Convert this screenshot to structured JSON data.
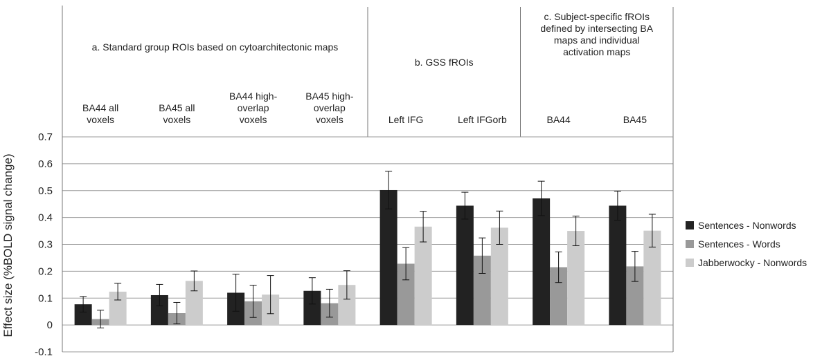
{
  "chart_data": {
    "type": "bar",
    "ylabel": "Effect size (%BOLD signal change)",
    "ylim": [
      -0.1,
      0.7
    ],
    "yticks": [
      "0.7",
      "0.6",
      "0.5",
      "0.4",
      "0.3",
      "0.2",
      "0.1",
      "0",
      "-0.1"
    ],
    "grid": true,
    "legend_position": "right",
    "groups": [
      {
        "label": "a. Standard group ROIs based on cytoarchitectonic maps",
        "first": 0,
        "count": 4
      },
      {
        "label": "b.  GSS fROIs",
        "first": 4,
        "count": 2
      },
      {
        "label": "c. Subject-specific fROIs defined by intersecting BA maps and individual activation maps",
        "first": 6,
        "count": 2
      }
    ],
    "categories": [
      "BA44 all voxels",
      "BA45 all voxels",
      "BA44 high-overlap voxels",
      "BA45 high-overlap voxels",
      "Left IFG",
      "Left IFGorb",
      "BA44",
      "BA45"
    ],
    "series": [
      {
        "name": "Sentences - Nonwords",
        "color": "#222222",
        "values": [
          0.077,
          0.111,
          0.12,
          0.127,
          0.502,
          0.444,
          0.471,
          0.444
        ],
        "errors": [
          0.029,
          0.04,
          0.069,
          0.049,
          0.07,
          0.05,
          0.064,
          0.054
        ]
      },
      {
        "name": "Sentences - Words",
        "color": "#999999",
        "values": [
          0.022,
          0.044,
          0.088,
          0.081,
          0.228,
          0.258,
          0.215,
          0.218
        ],
        "errors": [
          0.033,
          0.04,
          0.06,
          0.052,
          0.06,
          0.066,
          0.057,
          0.056
        ]
      },
      {
        "name": "Jabberwocky - Nonwords",
        "color": "#cccccc",
        "values": [
          0.124,
          0.164,
          0.113,
          0.149,
          0.366,
          0.362,
          0.35,
          0.351
        ],
        "errors": [
          0.031,
          0.037,
          0.071,
          0.053,
          0.057,
          0.062,
          0.055,
          0.061
        ]
      }
    ]
  }
}
